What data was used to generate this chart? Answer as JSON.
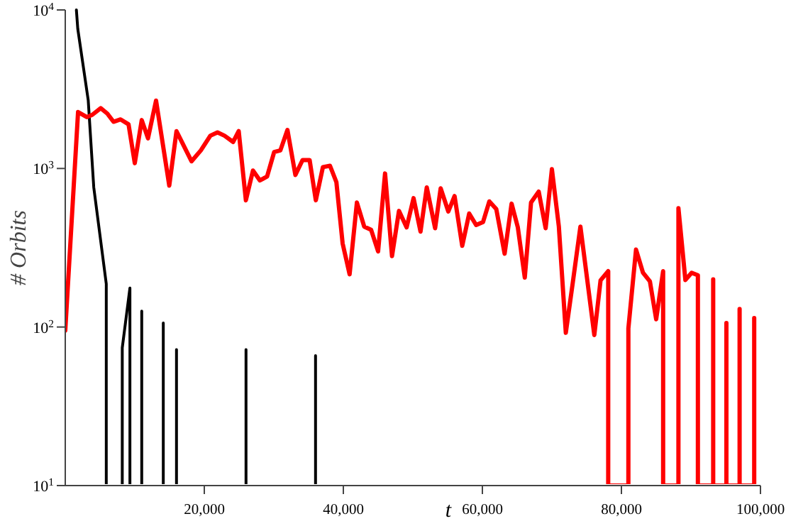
{
  "chart_data": {
    "type": "line",
    "xlabel": "t",
    "ylabel": "# Orbits",
    "log": "y",
    "grid": false,
    "marker": "none",
    "line_style": "solid",
    "xlim": [
      0,
      100000
    ],
    "ylim": [
      10,
      10000
    ],
    "xticks": [
      {
        "value": 20000,
        "label": "20,000"
      },
      {
        "value": 40000,
        "label": "40,000"
      },
      {
        "value": 60000,
        "label": "60,000"
      },
      {
        "value": 80000,
        "label": "80,000"
      },
      {
        "value": 100000,
        "label": "100,000"
      }
    ],
    "yticks": [
      {
        "value": 10,
        "label": "10$^{1}$"
      },
      {
        "value": 100,
        "label": "10$^{2}$"
      },
      {
        "value": 1000,
        "label": "10$^{3}$"
      },
      {
        "value": 10000,
        "label": "10$^{4}$"
      }
    ],
    "series": [
      {
        "color": "#000000",
        "x": [
          1600,
          1800,
          3300,
          4100,
          5900,
          5900,
          8200,
          8200,
          9300,
          9300,
          11000,
          11000,
          11000,
          14100,
          14100,
          14100,
          16000,
          16000,
          16000,
          26000,
          26000,
          26000,
          36000,
          36000,
          36000
        ],
        "values": [
          10000,
          7600,
          2700,
          760,
          187,
          10,
          10,
          74,
          176,
          10,
          10,
          126,
          10,
          10,
          106,
          10,
          10,
          72,
          10,
          10,
          72,
          10,
          10,
          66,
          10
        ]
      },
      {
        "color": "#ff0000",
        "x": [
          0,
          1840,
          3100,
          3880,
          5100,
          6050,
          6940,
          7960,
          9100,
          10000,
          11000,
          11900,
          13060,
          14960,
          16000,
          18160,
          19500,
          20870,
          21900,
          22900,
          24150,
          24950,
          25980,
          27000,
          28000,
          29030,
          30050,
          30940,
          31960,
          33100,
          34130,
          35150,
          36040,
          37060,
          38080,
          39000,
          39900,
          40900,
          41950,
          43000,
          44000,
          45000,
          46000,
          47000,
          48000,
          49100,
          50100,
          51100,
          52000,
          53200,
          54000,
          55100,
          56000,
          57100,
          58100,
          59100,
          60100,
          61000,
          62000,
          63200,
          64200,
          65100,
          66100,
          67000,
          68100,
          69100,
          70000,
          71000,
          72000,
          73000,
          74100,
          76100,
          77000,
          78100,
          78100,
          81000,
          81000,
          82100,
          83100,
          84100,
          85000,
          86000,
          86000,
          88200,
          88200,
          89200,
          90100,
          91000,
          91000,
          93200,
          93200,
          93200,
          95100,
          95100,
          95100,
          97000,
          97000,
          97000,
          99100,
          99100,
          99100
        ],
        "values": [
          95,
          2270,
          2110,
          2180,
          2400,
          2220,
          1970,
          2040,
          1900,
          1080,
          2020,
          1550,
          2680,
          780,
          1720,
          1110,
          1300,
          1610,
          1690,
          1610,
          1470,
          1720,
          630,
          970,
          840,
          890,
          1270,
          1300,
          1750,
          910,
          1130,
          1130,
          630,
          1020,
          1040,
          820,
          336,
          215,
          610,
          430,
          410,
          300,
          930,
          280,
          540,
          425,
          650,
          400,
          760,
          420,
          750,
          535,
          670,
          325,
          520,
          440,
          460,
          620,
          555,
          290,
          600,
          425,
          205,
          610,
          715,
          420,
          990,
          430,
          92,
          190,
          430,
          89,
          197,
          225,
          10,
          10,
          98,
          308,
          220,
          194,
          112,
          225,
          10,
          10,
          562,
          198,
          220,
          212,
          10,
          10,
          200,
          10,
          10,
          106,
          10,
          10,
          130,
          10,
          10,
          114,
          10
        ]
      }
    ]
  }
}
